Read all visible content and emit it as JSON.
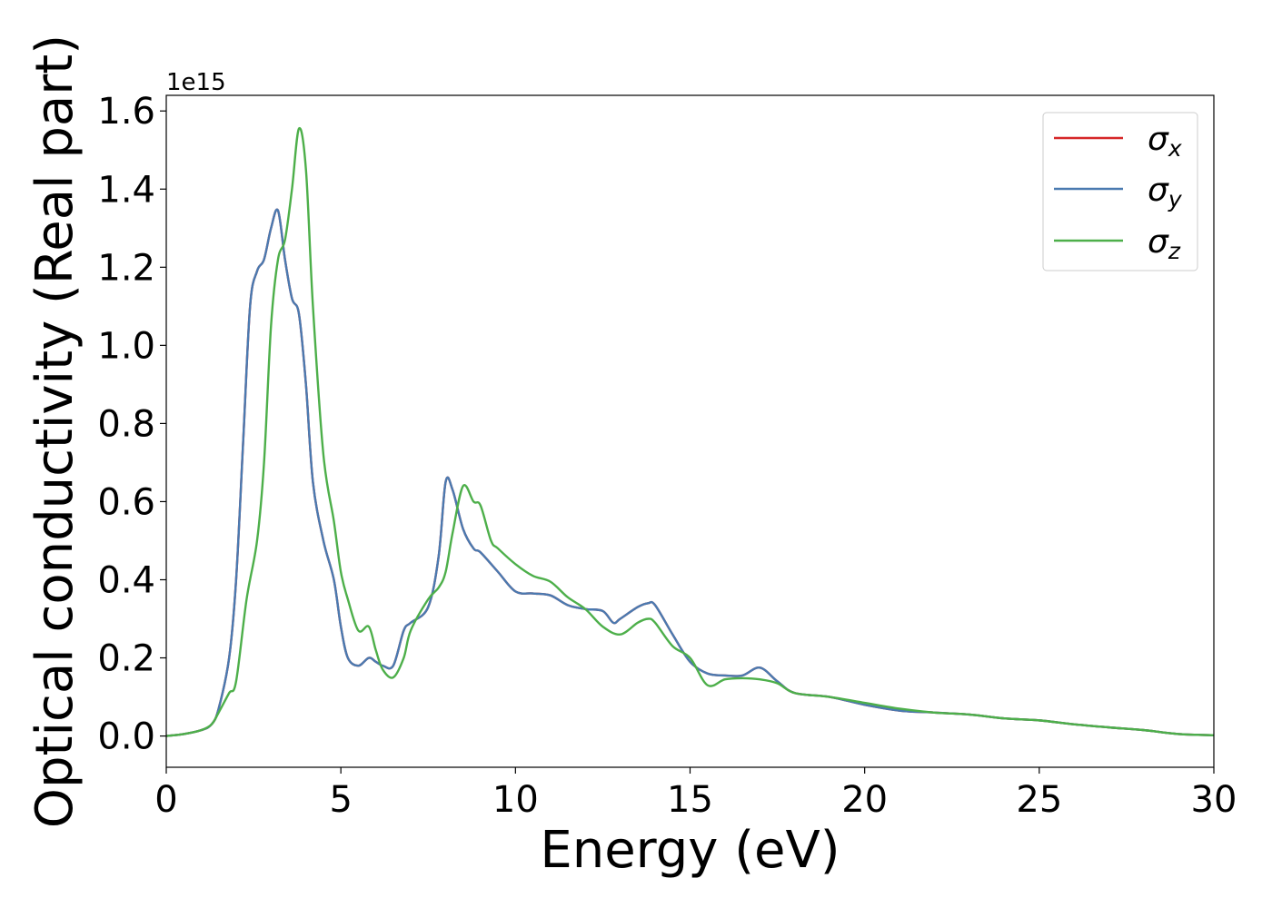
{
  "chart_data": {
    "type": "line",
    "xlabel": "Energy (eV)",
    "ylabel": "Optical conductivity (Real part)",
    "offset_label": "1e15",
    "xlim": [
      0,
      30
    ],
    "ylim": [
      -0.08,
      1.64
    ],
    "x_ticks": [
      0,
      5,
      10,
      15,
      20,
      25,
      30
    ],
    "x_tick_labels": [
      "0",
      "5",
      "10",
      "15",
      "20",
      "25",
      "30"
    ],
    "y_ticks": [
      0.0,
      0.2,
      0.4,
      0.6,
      0.8,
      1.0,
      1.2,
      1.4,
      1.6
    ],
    "y_tick_labels": [
      "0.0",
      "0.2",
      "0.4",
      "0.6",
      "0.8",
      "1.0",
      "1.2",
      "1.4",
      "1.6"
    ],
    "legend_position": "top-right",
    "grid": false,
    "series": [
      {
        "name": "σx",
        "legend_base": "σ",
        "legend_sub": "x",
        "color": "#d62728",
        "x": [
          0,
          0.5,
          1.0,
          1.3,
          1.5,
          1.8,
          2.0,
          2.2,
          2.4,
          2.6,
          2.8,
          3.0,
          3.2,
          3.4,
          3.6,
          3.8,
          4.0,
          4.2,
          4.5,
          4.8,
          5.0,
          5.2,
          5.5,
          5.8,
          6.0,
          6.2,
          6.5,
          6.8,
          7.0,
          7.5,
          7.8,
          8.0,
          8.2,
          8.5,
          8.8,
          9.0,
          9.5,
          10.0,
          10.5,
          11.0,
          11.5,
          12.0,
          12.5,
          12.8,
          13.0,
          13.5,
          13.8,
          14.0,
          14.5,
          15.0,
          15.5,
          16.0,
          16.5,
          17.0,
          17.5,
          18.0,
          19.0,
          20.0,
          21.0,
          22.0,
          23.0,
          24.0,
          25.0,
          26.0,
          27.0,
          28.0,
          29.0,
          30.0
        ],
        "y": [
          0.0,
          0.005,
          0.015,
          0.03,
          0.07,
          0.2,
          0.4,
          0.75,
          1.1,
          1.19,
          1.22,
          1.3,
          1.345,
          1.22,
          1.12,
          1.08,
          0.9,
          0.65,
          0.5,
          0.4,
          0.28,
          0.2,
          0.18,
          0.2,
          0.19,
          0.18,
          0.18,
          0.27,
          0.29,
          0.33,
          0.46,
          0.65,
          0.63,
          0.53,
          0.48,
          0.47,
          0.42,
          0.37,
          0.365,
          0.36,
          0.335,
          0.325,
          0.32,
          0.29,
          0.3,
          0.33,
          0.34,
          0.335,
          0.26,
          0.19,
          0.16,
          0.155,
          0.155,
          0.175,
          0.14,
          0.11,
          0.1,
          0.08,
          0.065,
          0.06,
          0.055,
          0.045,
          0.04,
          0.03,
          0.022,
          0.015,
          0.005,
          0.002
        ]
      },
      {
        "name": "σy",
        "legend_base": "σ",
        "legend_sub": "y",
        "color": "#4a7ab0",
        "x": [
          0,
          0.5,
          1.0,
          1.3,
          1.5,
          1.8,
          2.0,
          2.2,
          2.4,
          2.6,
          2.8,
          3.0,
          3.2,
          3.4,
          3.6,
          3.8,
          4.0,
          4.2,
          4.5,
          4.8,
          5.0,
          5.2,
          5.5,
          5.8,
          6.0,
          6.2,
          6.5,
          6.8,
          7.0,
          7.5,
          7.8,
          8.0,
          8.2,
          8.5,
          8.8,
          9.0,
          9.5,
          10.0,
          10.5,
          11.0,
          11.5,
          12.0,
          12.5,
          12.8,
          13.0,
          13.5,
          13.8,
          14.0,
          14.5,
          15.0,
          15.5,
          16.0,
          16.5,
          17.0,
          17.5,
          18.0,
          19.0,
          20.0,
          21.0,
          22.0,
          23.0,
          24.0,
          25.0,
          26.0,
          27.0,
          28.0,
          29.0,
          30.0
        ],
        "y": [
          0.0,
          0.005,
          0.015,
          0.03,
          0.07,
          0.2,
          0.4,
          0.75,
          1.1,
          1.19,
          1.22,
          1.3,
          1.345,
          1.22,
          1.12,
          1.08,
          0.9,
          0.65,
          0.5,
          0.4,
          0.28,
          0.2,
          0.18,
          0.2,
          0.19,
          0.18,
          0.18,
          0.27,
          0.29,
          0.33,
          0.46,
          0.65,
          0.63,
          0.53,
          0.48,
          0.47,
          0.42,
          0.37,
          0.365,
          0.36,
          0.335,
          0.325,
          0.32,
          0.29,
          0.3,
          0.33,
          0.34,
          0.335,
          0.26,
          0.19,
          0.16,
          0.155,
          0.155,
          0.175,
          0.14,
          0.11,
          0.1,
          0.08,
          0.065,
          0.06,
          0.055,
          0.045,
          0.04,
          0.03,
          0.022,
          0.015,
          0.005,
          0.002
        ]
      },
      {
        "name": "σz",
        "legend_base": "σ",
        "legend_sub": "z",
        "color": "#4daf4a",
        "x": [
          0,
          0.5,
          1.0,
          1.3,
          1.5,
          1.8,
          2.0,
          2.3,
          2.6,
          2.8,
          3.0,
          3.2,
          3.4,
          3.6,
          3.8,
          4.0,
          4.2,
          4.5,
          4.8,
          5.0,
          5.2,
          5.5,
          5.8,
          6.0,
          6.2,
          6.5,
          6.8,
          7.0,
          7.5,
          7.8,
          8.0,
          8.2,
          8.5,
          8.8,
          9.0,
          9.3,
          9.5,
          10.0,
          10.5,
          11.0,
          11.5,
          12.0,
          12.5,
          13.0,
          13.5,
          13.8,
          14.0,
          14.5,
          15.0,
          15.5,
          16.0,
          16.5,
          17.0,
          17.5,
          18.0,
          19.0,
          20.0,
          21.0,
          22.0,
          23.0,
          24.0,
          25.0,
          26.0,
          27.0,
          28.0,
          29.0,
          30.0
        ],
        "y": [
          0.0,
          0.005,
          0.015,
          0.03,
          0.06,
          0.11,
          0.14,
          0.35,
          0.5,
          0.7,
          1.05,
          1.22,
          1.27,
          1.4,
          1.555,
          1.45,
          1.1,
          0.72,
          0.55,
          0.42,
          0.35,
          0.27,
          0.28,
          0.22,
          0.17,
          0.15,
          0.2,
          0.27,
          0.35,
          0.38,
          0.42,
          0.52,
          0.64,
          0.6,
          0.59,
          0.5,
          0.48,
          0.44,
          0.41,
          0.395,
          0.355,
          0.325,
          0.28,
          0.26,
          0.29,
          0.3,
          0.29,
          0.23,
          0.2,
          0.13,
          0.145,
          0.148,
          0.145,
          0.135,
          0.11,
          0.1,
          0.085,
          0.07,
          0.06,
          0.055,
          0.045,
          0.04,
          0.03,
          0.022,
          0.015,
          0.005,
          0.002
        ]
      }
    ]
  }
}
